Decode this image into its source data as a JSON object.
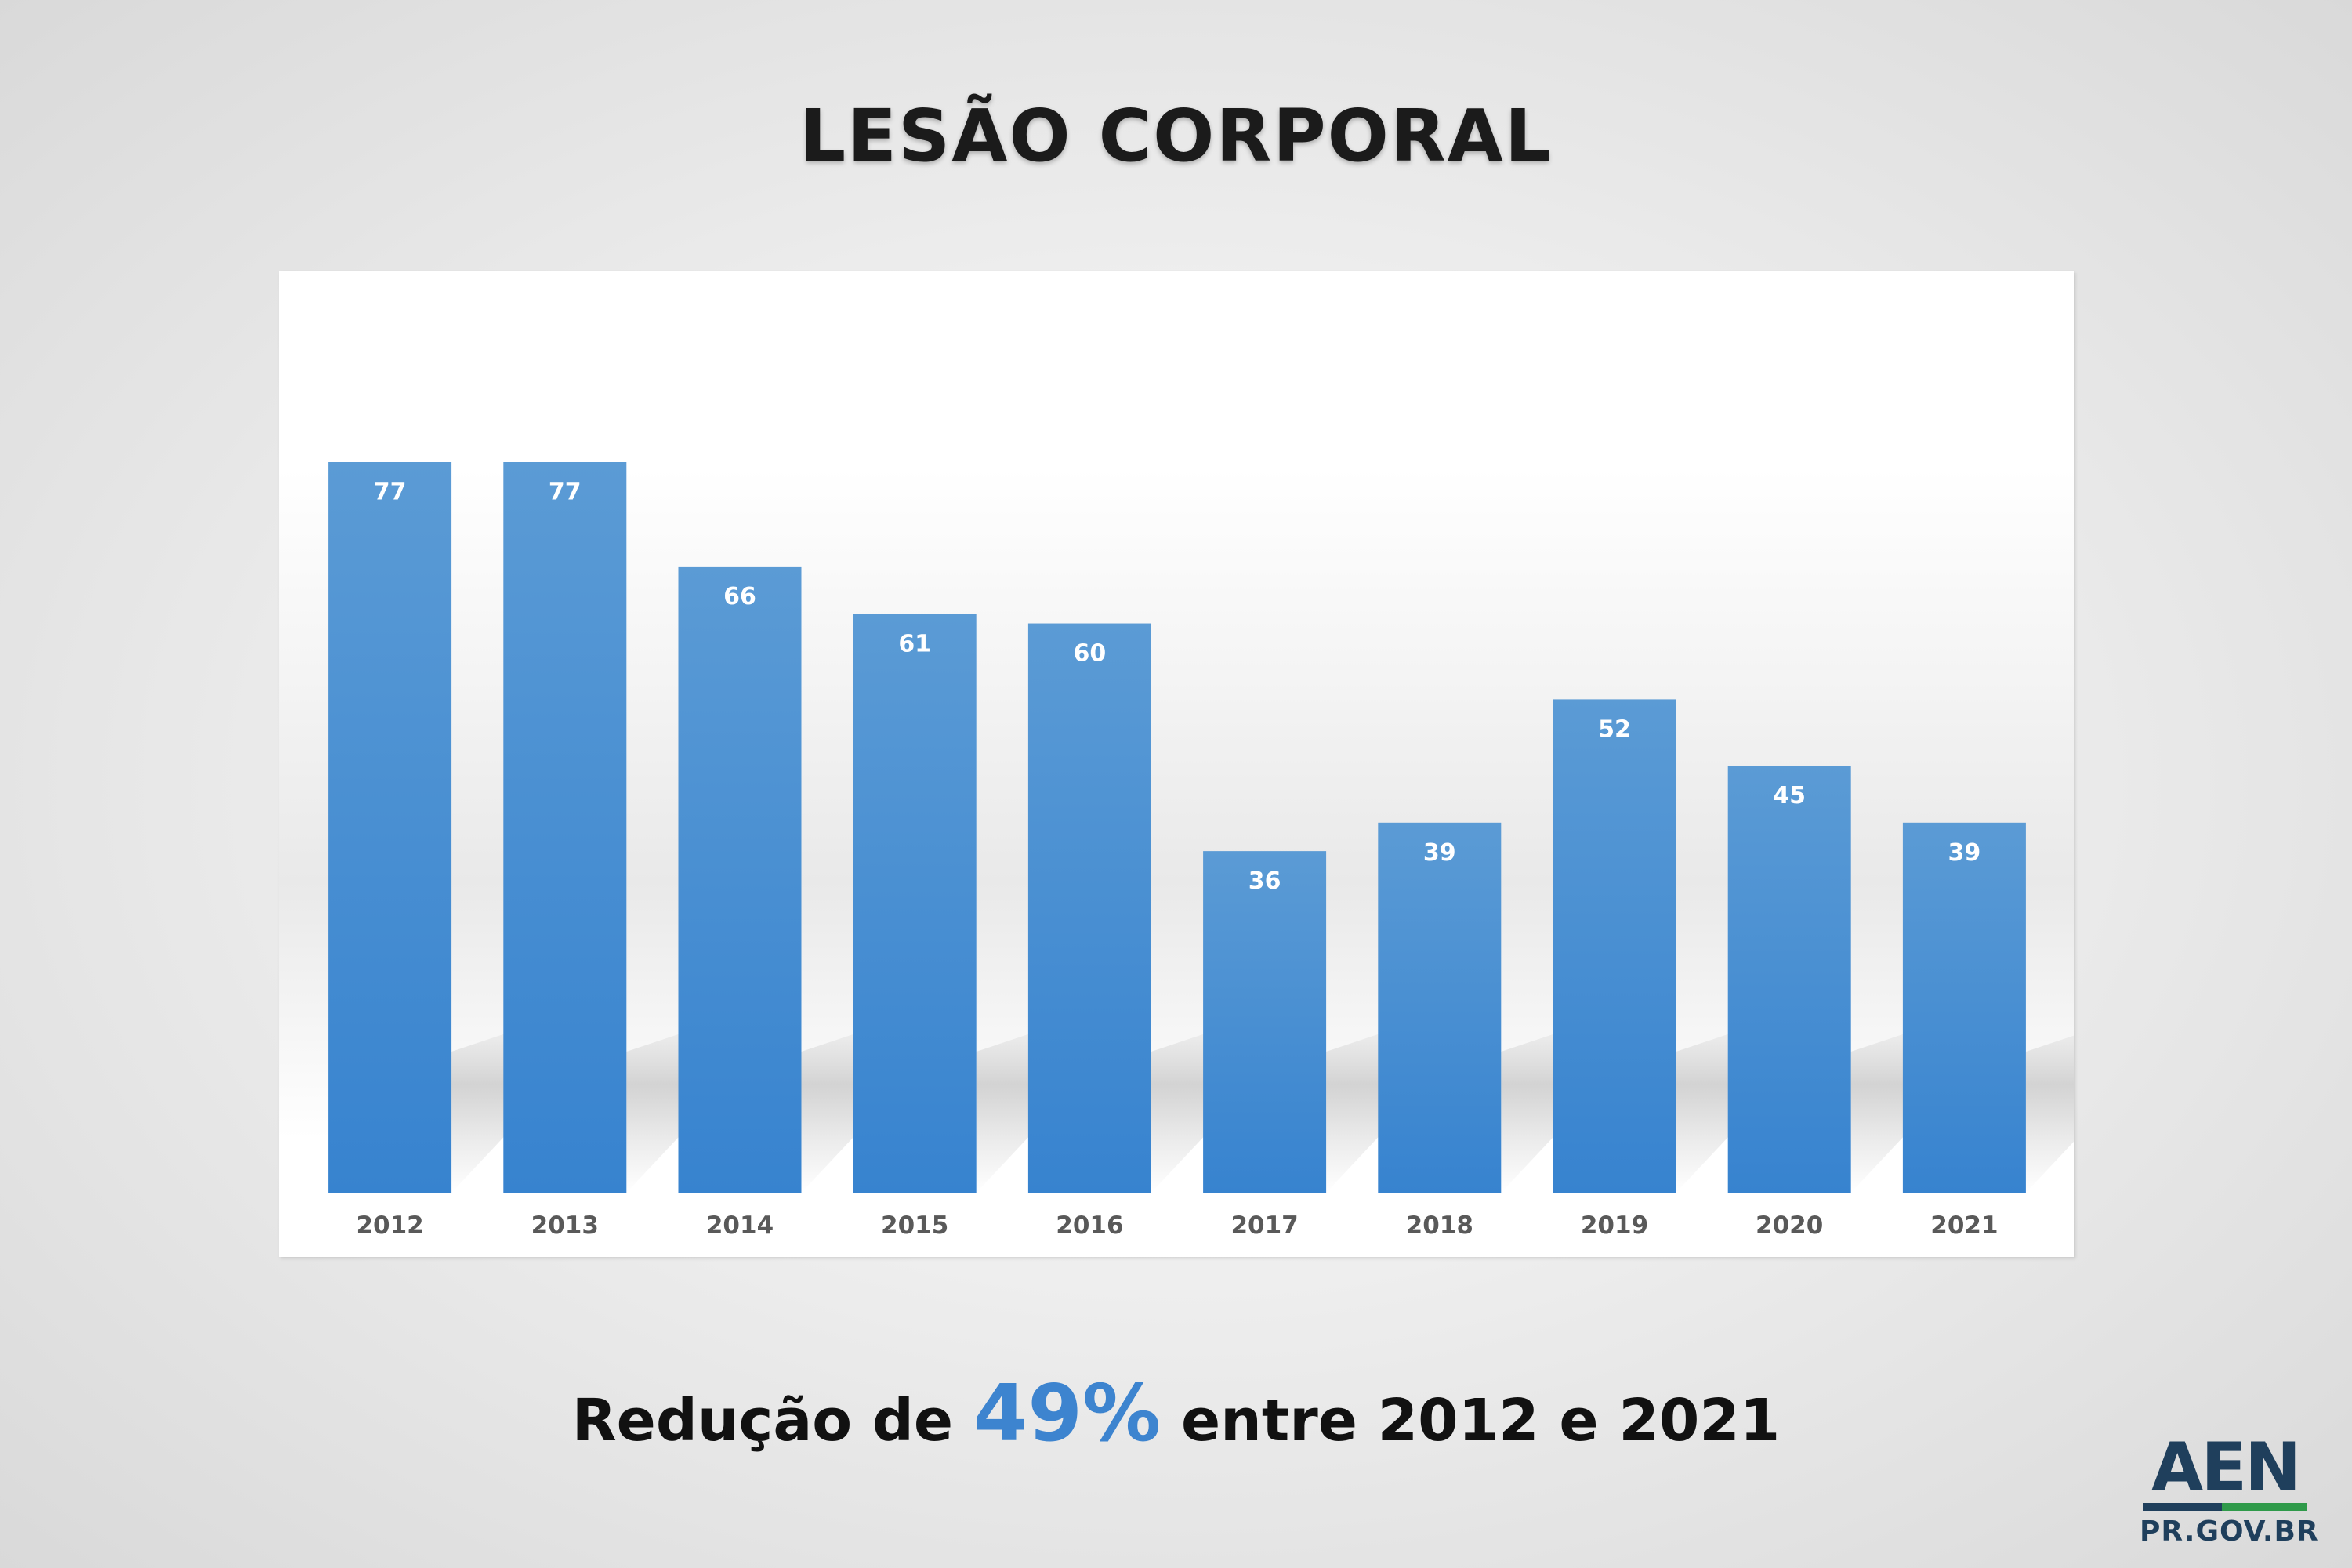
{
  "title": "LESÃO CORPORAL",
  "subtitle": {
    "before": "Redução de",
    "highlight": "49%",
    "after": "entre 2012 e 2021"
  },
  "logo": {
    "main": "AEN",
    "sub": "PR.GOV.BR"
  },
  "colors": {
    "bar_top": "#5b9bd5",
    "bar_bottom": "#3783cf",
    "highlight": "#3d84cf",
    "logo_blue": "#1f3f5c",
    "logo_green": "#2f9a4a"
  },
  "chart_data": {
    "type": "bar",
    "categories": [
      "2012",
      "2013",
      "2014",
      "2015",
      "2016",
      "2017",
      "2018",
      "2019",
      "2020",
      "2021"
    ],
    "values": [
      77,
      77,
      66,
      61,
      60,
      36,
      39,
      52,
      45,
      39
    ],
    "title": "",
    "xlabel": "",
    "ylabel": "",
    "ylim": [
      0,
      93
    ],
    "grid": false,
    "legend": "none",
    "data_labels": "inside-top"
  }
}
